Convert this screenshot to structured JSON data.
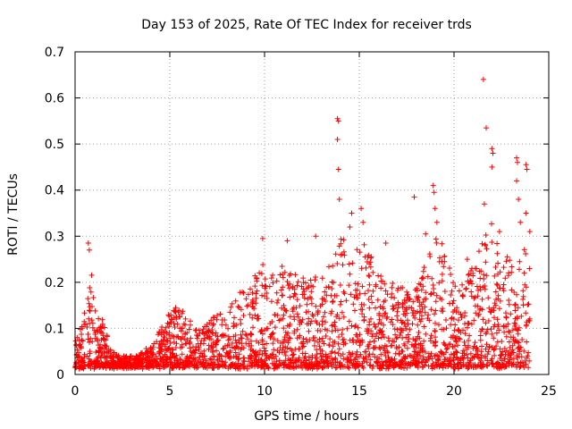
{
  "chart_data": {
    "type": "scatter",
    "title": "Day 153 of 2025, Rate Of TEC Index for receiver trds",
    "xlabel": "GPS time / hours",
    "ylabel": "ROTI / TECUs",
    "xlim": [
      0,
      25
    ],
    "ylim": [
      0,
      0.7
    ],
    "xticks": [
      0,
      5,
      10,
      15,
      20,
      25
    ],
    "yticks": [
      0,
      0.1,
      0.2,
      0.3,
      0.4,
      0.5,
      0.6,
      0.7
    ],
    "xtick_labels": [
      "0",
      "5",
      "10",
      "15",
      "20",
      "25"
    ],
    "ytick_labels": [
      "0",
      "0.1",
      "0.2",
      "0.3",
      "0.4",
      "0.5",
      "0.6",
      "0.7"
    ],
    "grid": true,
    "marker": "plus",
    "color": "#ff0000",
    "envelope": {
      "x": [
        0,
        0.3,
        0.6,
        0.8,
        1.0,
        1.3,
        1.6,
        2.0,
        2.5,
        3.0,
        3.5,
        4.0,
        4.5,
        5.0,
        5.5,
        6.0,
        6.5,
        7.0,
        7.5,
        8.0,
        8.5,
        9.0,
        9.5,
        10.0,
        10.5,
        11.0,
        11.5,
        12.0,
        12.5,
        13.0,
        13.5,
        14.0,
        14.5,
        15.0,
        15.5,
        16.0,
        16.5,
        17.0,
        17.5,
        18.0,
        18.5,
        19.0,
        19.5,
        20.0,
        20.5,
        21.0,
        21.5,
        22.0,
        22.5,
        23.0,
        23.5,
        24.0
      ],
      "y": [
        0.07,
        0.1,
        0.18,
        0.24,
        0.19,
        0.15,
        0.1,
        0.05,
        0.04,
        0.04,
        0.05,
        0.07,
        0.1,
        0.14,
        0.15,
        0.12,
        0.1,
        0.12,
        0.13,
        0.14,
        0.17,
        0.2,
        0.22,
        0.25,
        0.22,
        0.24,
        0.23,
        0.22,
        0.24,
        0.25,
        0.24,
        0.3,
        0.28,
        0.31,
        0.27,
        0.22,
        0.2,
        0.2,
        0.18,
        0.2,
        0.24,
        0.3,
        0.28,
        0.2,
        0.2,
        0.25,
        0.3,
        0.34,
        0.28,
        0.28,
        0.34,
        0.3
      ]
    },
    "outliers": [
      {
        "x": 0.7,
        "y": 0.285
      },
      {
        "x": 0.75,
        "y": 0.27
      },
      {
        "x": 9.9,
        "y": 0.295
      },
      {
        "x": 11.2,
        "y": 0.29
      },
      {
        "x": 12.7,
        "y": 0.3
      },
      {
        "x": 13.85,
        "y": 0.555
      },
      {
        "x": 13.9,
        "y": 0.55
      },
      {
        "x": 13.85,
        "y": 0.51
      },
      {
        "x": 13.9,
        "y": 0.445
      },
      {
        "x": 13.95,
        "y": 0.38
      },
      {
        "x": 14.6,
        "y": 0.35
      },
      {
        "x": 14.5,
        "y": 0.32
      },
      {
        "x": 15.1,
        "y": 0.36
      },
      {
        "x": 15.2,
        "y": 0.33
      },
      {
        "x": 16.4,
        "y": 0.285
      },
      {
        "x": 17.9,
        "y": 0.385
      },
      {
        "x": 18.5,
        "y": 0.305
      },
      {
        "x": 18.9,
        "y": 0.41
      },
      {
        "x": 18.95,
        "y": 0.395
      },
      {
        "x": 19.0,
        "y": 0.36
      },
      {
        "x": 19.1,
        "y": 0.33
      },
      {
        "x": 20.7,
        "y": 0.25
      },
      {
        "x": 21.55,
        "y": 0.64
      },
      {
        "x": 21.7,
        "y": 0.535
      },
      {
        "x": 21.6,
        "y": 0.37
      },
      {
        "x": 22.0,
        "y": 0.49
      },
      {
        "x": 22.05,
        "y": 0.48
      },
      {
        "x": 22.0,
        "y": 0.45
      },
      {
        "x": 22.4,
        "y": 0.31
      },
      {
        "x": 23.3,
        "y": 0.47
      },
      {
        "x": 23.35,
        "y": 0.46
      },
      {
        "x": 23.3,
        "y": 0.42
      },
      {
        "x": 23.4,
        "y": 0.38
      },
      {
        "x": 23.8,
        "y": 0.455
      },
      {
        "x": 23.85,
        "y": 0.445
      },
      {
        "x": 23.8,
        "y": 0.35
      },
      {
        "x": 23.5,
        "y": 0.33
      },
      {
        "x": 24.0,
        "y": 0.31
      }
    ]
  }
}
